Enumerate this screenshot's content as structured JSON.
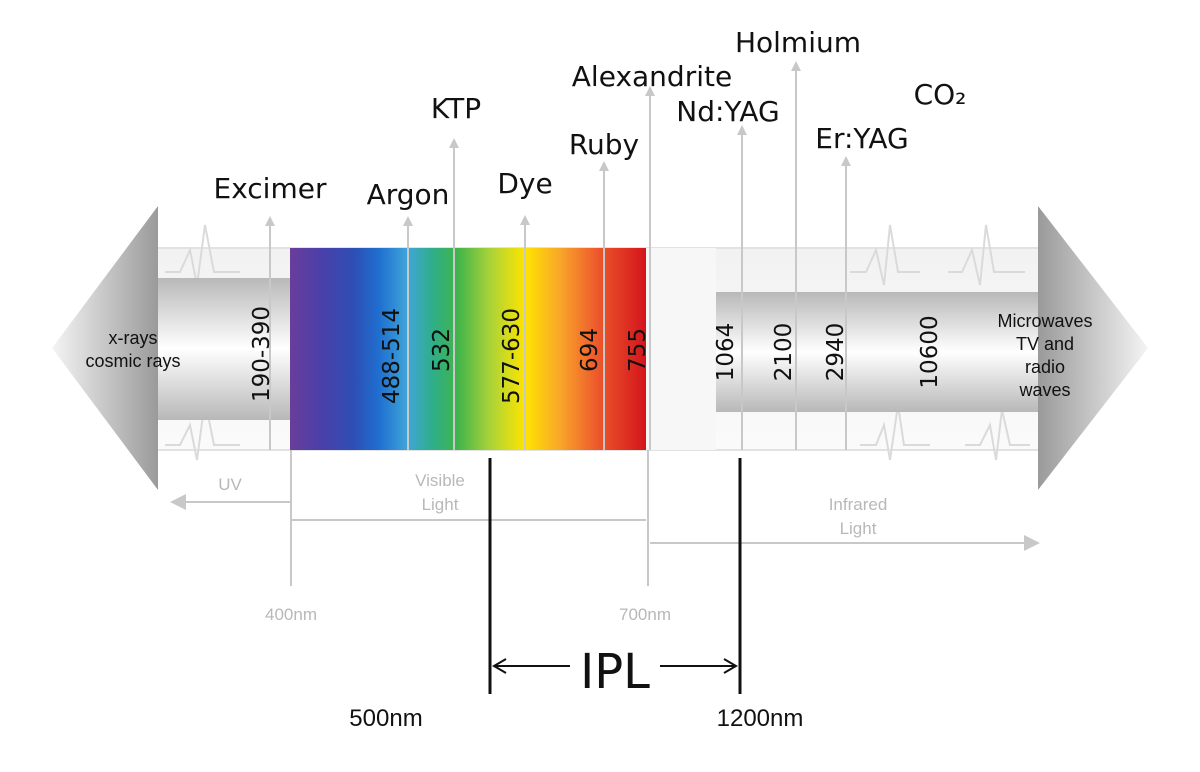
{
  "lasers": [
    {
      "name": "Excimer",
      "wavelength": "190-390"
    },
    {
      "name": "Argon",
      "wavelength": "488-514"
    },
    {
      "name": "KTP",
      "wavelength": "532"
    },
    {
      "name": "Dye",
      "wavelength": "577-630"
    },
    {
      "name": "Ruby",
      "wavelength": "694"
    },
    {
      "name": "Alexandrite",
      "wavelength": "755"
    },
    {
      "name": "Nd:YAG",
      "wavelength": "1064"
    },
    {
      "name": "Holmium",
      "wavelength": "2100"
    },
    {
      "name": "Er:YAG",
      "wavelength": "2940"
    },
    {
      "name": "CO₂",
      "wavelength": "10600"
    }
  ],
  "left_end": {
    "line1": "x-rays",
    "line2": "cosmic rays"
  },
  "right_end": {
    "line1": "Microwaves",
    "line2": "TV and",
    "line3": "radio",
    "line4": "waves"
  },
  "regions": {
    "uv": "UV",
    "visible_1": "Visible",
    "visible_2": "Light",
    "infrared_1": "Infrared",
    "infrared_2": "Light"
  },
  "markers": {
    "nm400": "400nm",
    "nm700": "700nm",
    "nm500": "500nm",
    "nm1200": "1200nm"
  },
  "ipl": {
    "label": "IPL"
  },
  "colors": {
    "arrow_grey": "#c9c9c9",
    "line_grey": "#c8c8c8",
    "text_grey": "#b8b8b8",
    "ink": "#111111"
  }
}
